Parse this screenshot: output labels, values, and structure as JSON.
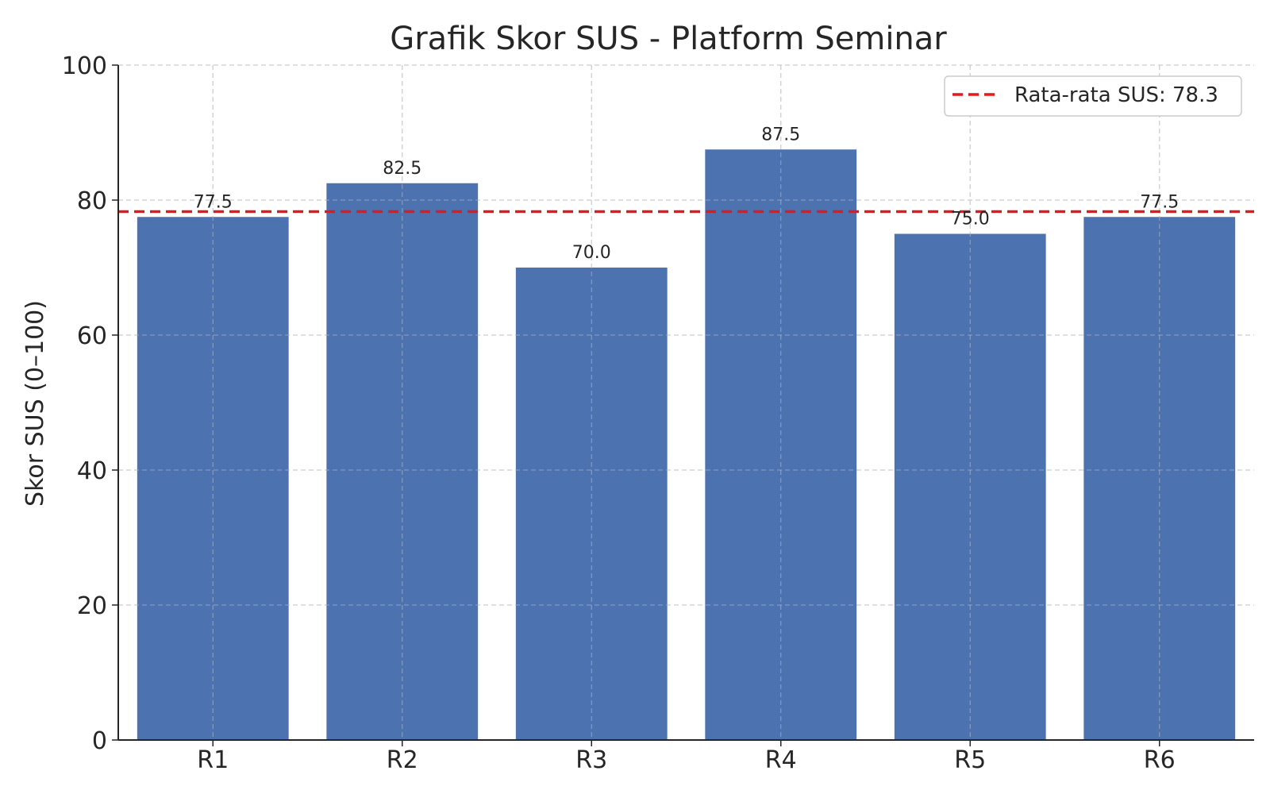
{
  "chart_data": {
    "type": "bar",
    "title": "Grafik Skor SUS - Platform Seminar",
    "xlabel": "",
    "ylabel": "Skor SUS (0–100)",
    "categories": [
      "R1",
      "R2",
      "R3",
      "R4",
      "R5",
      "R6"
    ],
    "values": [
      77.5,
      82.5,
      70.0,
      87.5,
      75.0,
      77.5
    ],
    "value_labels": [
      "77.5",
      "82.5",
      "70.0",
      "87.5",
      "75.0",
      "77.5"
    ],
    "ylim": [
      0,
      100
    ],
    "yticks": [
      0,
      20,
      40,
      60,
      80,
      100
    ],
    "grid": true,
    "bar_color": "#4C72B0",
    "reference_line": {
      "value": 78.3,
      "label": "Rata-rata SUS: 78.3",
      "color": "#E31A1C",
      "style": "dashed"
    },
    "legend": {
      "placement": "top-right",
      "entries": [
        "Rata-rata SUS: 78.3"
      ]
    }
  }
}
